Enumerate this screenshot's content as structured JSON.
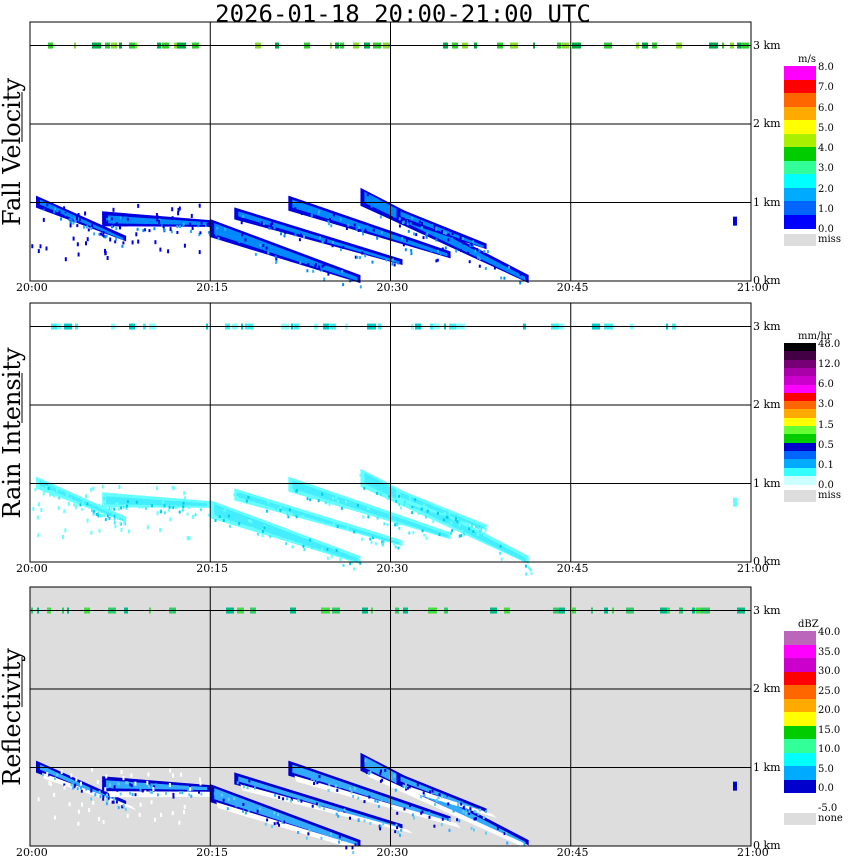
{
  "title": "2026-01-18   20:00-21:00 UTC",
  "x_ticks": [
    "20:00",
    "20:15",
    "20:30",
    "20:45",
    "21:00"
  ],
  "height_ticks": [
    "0 km",
    "1 km",
    "2 km",
    "3 km"
  ],
  "panels": [
    {
      "ylabel": "Fall Velocity",
      "background": "#ffffff",
      "legend": {
        "unit": "m/s",
        "colors": [
          "#ff00ff",
          "#ff0000",
          "#ff6600",
          "#ffaa00",
          "#ffff00",
          "#aaee00",
          "#00cc00",
          "#33ff99",
          "#00ffff",
          "#00aaff",
          "#0066ff",
          "#0000ff",
          "#dddddd"
        ],
        "labels": [
          "8.0",
          "7.0",
          "6.0",
          "5.0",
          "4.0",
          "3.0",
          "2.0",
          "1.0",
          "0.0",
          "miss"
        ]
      },
      "top_strip_colors": [
        "#33cc33",
        "#88dd33",
        "#00aa44"
      ],
      "band_colors": [
        "#0000dd",
        "#0088ff",
        "#33aaff"
      ]
    },
    {
      "ylabel": "Rain Intensity",
      "background": "#ffffff",
      "legend": {
        "unit": "mm/hr",
        "colors": [
          "#000000",
          "#440044",
          "#770077",
          "#aa00aa",
          "#cc00cc",
          "#ff00ff",
          "#ff0000",
          "#ff6600",
          "#ffaa00",
          "#ffff00",
          "#66ff33",
          "#00cc00",
          "#0000cc",
          "#0066ff",
          "#00aaff",
          "#33ffff",
          "#ccffff",
          "#dddddd"
        ],
        "labels": [
          "48.0",
          "12.0",
          "6.0",
          "3.0",
          "1.5",
          "0.5",
          "0.1",
          "0.0",
          "miss"
        ]
      },
      "top_strip_colors": [
        "#44eeee",
        "#88ffff",
        "#00cccc"
      ],
      "band_colors": [
        "#66ffff",
        "#44eeff",
        "#00ccee"
      ]
    },
    {
      "ylabel": "Reflectivity",
      "background": "#dddddd",
      "legend": {
        "unit": "dBZ",
        "colors": [
          "#bb66bb",
          "#ff00ff",
          "#cc00cc",
          "#ff0000",
          "#ff6600",
          "#ffaa00",
          "#ffff00",
          "#00cc00",
          "#33ff99",
          "#00ffff",
          "#00aaff",
          "#0000cc",
          "#ffffff",
          "#dddddd"
        ],
        "labels": [
          "40.0",
          "35.0",
          "30.0",
          "25.0",
          "20.0",
          "15.0",
          "10.0",
          "5.0",
          "0.0",
          "-5.0",
          "none"
        ]
      },
      "top_strip_colors": [
        "#33cc66",
        "#00bb88",
        "#44dd44"
      ],
      "band_colors": [
        "#0000cc",
        "#33aaff",
        "#66ccee"
      ]
    }
  ],
  "chart_data": {
    "type": "heatmap",
    "title": "2026-01-18   20:00-21:00 UTC",
    "xlabel": "",
    "xlim": [
      "20:00",
      "21:00"
    ],
    "ylim_km": [
      0,
      3.3
    ],
    "fall_streaks": [
      {
        "t0": 0.5,
        "h0": 1.05,
        "t1": 8.0,
        "h1": 0.55
      },
      {
        "t0": 6.0,
        "h0": 0.85,
        "t1": 15.0,
        "h1": 0.75
      },
      {
        "t0": 15.0,
        "h0": 0.75,
        "t1": 27.5,
        "h1": 0.05
      },
      {
        "t0": 17.0,
        "h0": 0.9,
        "t1": 31.0,
        "h1": 0.25
      },
      {
        "t0": 21.5,
        "h0": 1.05,
        "t1": 35.0,
        "h1": 0.35
      },
      {
        "t0": 27.5,
        "h0": 1.15,
        "t1": 41.5,
        "h1": 0.05
      },
      {
        "t0": 30.5,
        "h0": 0.9,
        "t1": 38.0,
        "h1": 0.45
      }
    ]
  }
}
